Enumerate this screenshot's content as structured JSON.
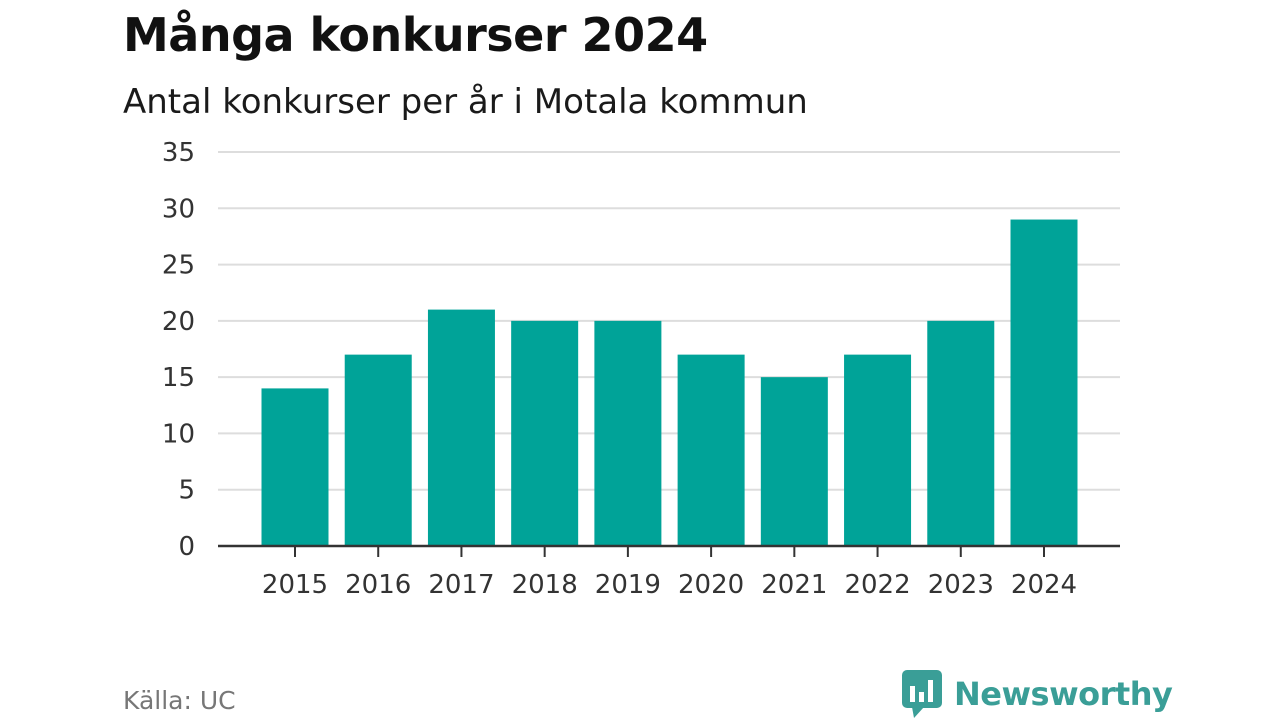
{
  "header": {
    "title": "Många konkurser 2024",
    "subtitle": "Antal konkurser per år i Motala kommun"
  },
  "footer": {
    "source": "Källa: UC",
    "brand": "Newsworthy",
    "brand_icon": "bar-chart-speech-bubble-icon"
  },
  "colors": {
    "bar": "#00a398",
    "brand": "#3a9e97",
    "grid": "#dddddd",
    "axis": "#333333"
  },
  "chart_data": {
    "type": "bar",
    "title": "Många konkurser 2024",
    "subtitle": "Antal konkurser per år i Motala kommun",
    "categories": [
      "2015",
      "2016",
      "2017",
      "2018",
      "2019",
      "2020",
      "2021",
      "2022",
      "2023",
      "2024"
    ],
    "values": [
      14,
      17,
      21,
      20,
      20,
      17,
      15,
      17,
      20,
      29
    ],
    "ylim": [
      0,
      35
    ],
    "yticks": [
      0,
      5,
      10,
      15,
      20,
      25,
      30,
      35
    ],
    "xlabel": "",
    "ylabel": "",
    "grid": true,
    "legend": "none"
  }
}
